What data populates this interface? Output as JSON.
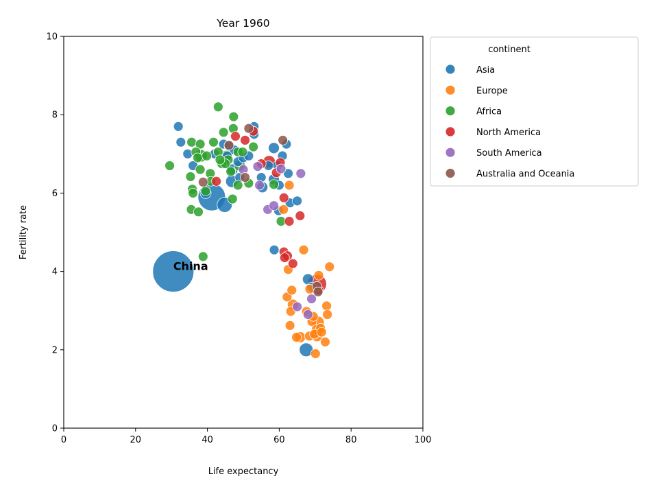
{
  "chart_data": {
    "type": "scatter",
    "title": "Year 1960",
    "xlabel": "Life expectancy",
    "ylabel": "Fertility rate",
    "xlim": [
      0,
      100
    ],
    "ylim": [
      0,
      10
    ],
    "xticks": [
      "0",
      "20",
      "40",
      "60",
      "80",
      "100"
    ],
    "yticks": [
      "0",
      "2",
      "4",
      "6",
      "8",
      "10"
    ],
    "legend": {
      "title": "continent",
      "placement": "outside right, top"
    },
    "annotations": [
      {
        "text": "China",
        "x": 30.5,
        "y": 4.0
      }
    ],
    "series": [
      {
        "name": "Asia",
        "color": "#1f77b4",
        "points": [
          [
            30.5,
            4.0,
            60
          ],
          [
            41.2,
            5.9,
            40
          ],
          [
            44.8,
            5.7,
            22
          ],
          [
            31.9,
            7.7,
            14
          ],
          [
            32.6,
            7.3,
            14
          ],
          [
            34.5,
            7.0,
            14
          ],
          [
            36.0,
            6.7,
            14
          ],
          [
            39.5,
            6.0,
            16
          ],
          [
            42.0,
            7.0,
            14
          ],
          [
            44.5,
            7.25,
            14
          ],
          [
            46.0,
            7.2,
            14
          ],
          [
            47.5,
            7.1,
            14
          ],
          [
            48.5,
            6.8,
            14
          ],
          [
            46.8,
            6.3,
            18
          ],
          [
            47.0,
            6.6,
            16
          ],
          [
            49.0,
            6.4,
            14
          ],
          [
            50.0,
            6.9,
            14
          ],
          [
            53.0,
            7.7,
            14
          ],
          [
            55.0,
            6.4,
            14
          ],
          [
            55.3,
            6.15,
            16
          ],
          [
            58.5,
            7.15,
            16
          ],
          [
            58.5,
            6.35,
            16
          ],
          [
            59.5,
            6.7,
            14
          ],
          [
            60.0,
            6.2,
            14
          ],
          [
            60.9,
            6.95,
            14
          ],
          [
            62.0,
            7.25,
            14
          ],
          [
            59.8,
            5.55,
            14
          ],
          [
            62.5,
            6.5,
            14
          ],
          [
            63.0,
            5.75,
            14
          ],
          [
            65.0,
            5.8,
            14
          ],
          [
            58.6,
            4.55,
            14
          ],
          [
            68.0,
            3.8,
            16
          ],
          [
            67.5,
            2.0,
            20
          ],
          [
            69.0,
            3.6,
            14
          ],
          [
            57.0,
            6.7,
            14
          ],
          [
            53.0,
            7.5,
            14
          ],
          [
            45.5,
            6.95,
            14
          ],
          [
            51.5,
            6.95,
            14
          ]
        ]
      },
      {
        "name": "Europe",
        "color": "#ff7f0e",
        "points": [
          [
            66.8,
            4.55,
            14
          ],
          [
            74.0,
            4.12,
            14
          ],
          [
            62.5,
            4.05,
            14
          ],
          [
            62.2,
            3.35,
            14
          ],
          [
            63.5,
            3.52,
            14
          ],
          [
            63.8,
            3.15,
            16
          ],
          [
            63.2,
            2.98,
            14
          ],
          [
            63.0,
            2.62,
            14
          ],
          [
            64.8,
            2.32,
            14
          ],
          [
            65.8,
            2.32,
            16
          ],
          [
            67.6,
            2.98,
            14
          ],
          [
            68.4,
            2.35,
            14
          ],
          [
            69.1,
            2.72,
            14
          ],
          [
            69.5,
            2.85,
            14
          ],
          [
            70.3,
            2.52,
            14
          ],
          [
            70.5,
            2.35,
            16
          ],
          [
            70.8,
            2.7,
            18
          ],
          [
            71.5,
            2.55,
            14
          ],
          [
            72.8,
            2.2,
            14
          ],
          [
            73.2,
            3.12,
            14
          ],
          [
            73.4,
            2.9,
            14
          ],
          [
            70.1,
            1.9,
            14
          ],
          [
            71.0,
            3.9,
            14
          ],
          [
            68.5,
            3.55,
            14
          ],
          [
            61.2,
            5.58,
            14
          ],
          [
            62.8,
            6.2,
            14
          ],
          [
            69.8,
            2.4,
            14
          ],
          [
            71.8,
            2.45,
            14
          ]
        ]
      },
      {
        "name": "Africa",
        "color": "#2ca02c",
        "points": [
          [
            29.5,
            6.7,
            14
          ],
          [
            35.6,
            7.3,
            14
          ],
          [
            38.0,
            7.25,
            14
          ],
          [
            36.8,
            7.05,
            14
          ],
          [
            37.3,
            6.9,
            14
          ],
          [
            38.2,
            6.95,
            18
          ],
          [
            39.8,
            6.95,
            14
          ],
          [
            41.7,
            7.3,
            14
          ],
          [
            43.0,
            7.05,
            14
          ],
          [
            43.0,
            8.2,
            14
          ],
          [
            44.5,
            7.55,
            14
          ],
          [
            45.3,
            6.95,
            16
          ],
          [
            45.8,
            6.85,
            14
          ],
          [
            47.3,
            7.95,
            14
          ],
          [
            47.2,
            7.65,
            14
          ],
          [
            48.5,
            7.05,
            14
          ],
          [
            49.8,
            7.05,
            14
          ],
          [
            52.8,
            7.18,
            14
          ],
          [
            35.3,
            6.42,
            14
          ],
          [
            35.8,
            6.1,
            14
          ],
          [
            36.0,
            6.0,
            14
          ],
          [
            38.0,
            6.6,
            14
          ],
          [
            40.8,
            6.5,
            14
          ],
          [
            41.0,
            6.3,
            14
          ],
          [
            44.0,
            6.75,
            14
          ],
          [
            45.0,
            6.75,
            14
          ],
          [
            46.5,
            6.55,
            14
          ],
          [
            48.5,
            6.2,
            14
          ],
          [
            49.0,
            6.7,
            16
          ],
          [
            51.5,
            6.25,
            14
          ],
          [
            35.5,
            5.58,
            14
          ],
          [
            37.5,
            5.52,
            14
          ],
          [
            47.0,
            5.85,
            14
          ],
          [
            58.5,
            6.22,
            14
          ],
          [
            60.5,
            5.28,
            14
          ],
          [
            38.8,
            4.38,
            14
          ],
          [
            43.5,
            6.85,
            14
          ],
          [
            39.5,
            6.05,
            14
          ]
        ]
      },
      {
        "name": "North America",
        "color": "#d62728",
        "points": [
          [
            70.5,
            3.68,
            28
          ],
          [
            71.0,
            3.52,
            14
          ],
          [
            61.3,
            4.5,
            14
          ],
          [
            62.3,
            4.4,
            14
          ],
          [
            61.5,
            4.35,
            14
          ],
          [
            63.8,
            4.2,
            14
          ],
          [
            61.3,
            5.88,
            14
          ],
          [
            65.8,
            5.42,
            14
          ],
          [
            62.8,
            5.28,
            14
          ],
          [
            57.2,
            6.8,
            18
          ],
          [
            59.2,
            6.52,
            14
          ],
          [
            60.3,
            6.78,
            14
          ],
          [
            52.8,
            7.58,
            14
          ],
          [
            50.5,
            7.35,
            14
          ],
          [
            47.8,
            7.45,
            14
          ],
          [
            42.5,
            6.3,
            14
          ],
          [
            55.0,
            6.75,
            14
          ]
        ]
      },
      {
        "name": "South America",
        "color": "#9467bd",
        "points": [
          [
            56.8,
            5.58,
            14
          ],
          [
            58.5,
            5.68,
            14
          ],
          [
            60.5,
            6.62,
            14
          ],
          [
            66.0,
            6.5,
            14
          ],
          [
            54.0,
            6.68,
            14
          ],
          [
            65.0,
            3.1,
            14
          ],
          [
            68.0,
            2.9,
            14
          ],
          [
            69.0,
            3.3,
            14
          ],
          [
            50.0,
            6.6,
            14
          ],
          [
            54.5,
            6.2,
            14
          ]
        ]
      },
      {
        "name": "Australia and Oceania",
        "color": "#8c564b",
        "points": [
          [
            38.8,
            6.28,
            14
          ],
          [
            46.0,
            7.22,
            14
          ],
          [
            50.5,
            6.4,
            14
          ],
          [
            51.5,
            7.65,
            14
          ],
          [
            61.0,
            7.35,
            14
          ],
          [
            70.5,
            3.62,
            14
          ],
          [
            70.8,
            3.48,
            14
          ]
        ]
      }
    ]
  }
}
